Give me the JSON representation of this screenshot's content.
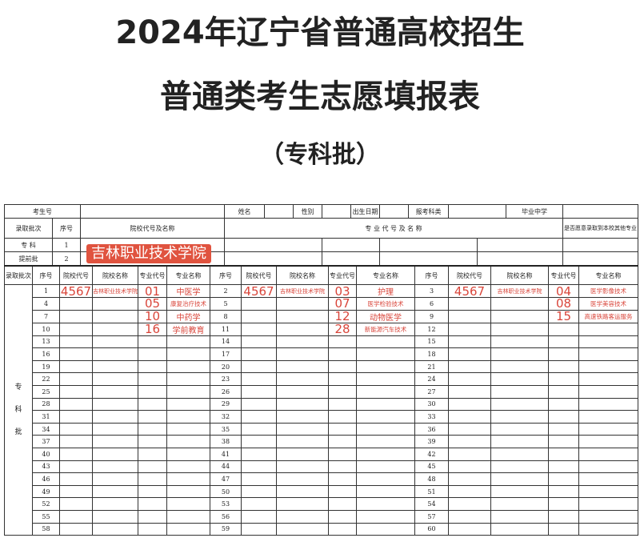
{
  "title_line1": "2024年辽宁省普通高校招生",
  "title_line2": "普通类考生志愿填报表",
  "title_line3": "（专科批）",
  "top": {
    "exam_no": "考生号",
    "name": "姓名",
    "gender": "性别",
    "birth": "出生日期",
    "subject": "报考科类",
    "school": "毕业中学",
    "batch": "录取批次",
    "seq": "序号",
    "college_code_name": "院校代号及名称",
    "major_code_name": "专 业 代 号 及 名 称",
    "accept_other": "是否愿意录取到本校其他专业",
    "row1_batch": "专 科",
    "row1_seq": "1",
    "row2_batch": "提前批",
    "row2_seq": "2",
    "banner": "吉林职业技术学院"
  },
  "headers": {
    "batch": "录取批次",
    "seq": "序号",
    "college_code": "院校代号",
    "college_name": "院校名称",
    "major_code": "专业代号",
    "major_name": "专业名称"
  },
  "batch_label": [
    "专",
    "科",
    "批"
  ],
  "rows": [
    [
      "1",
      "4567",
      "吉林职业技术学院",
      "01",
      "中医学",
      "2",
      "4567",
      "吉林职业技术学院",
      "03",
      "护理",
      "3",
      "4567",
      "吉林职业技术学院",
      "04",
      "医学影像技术"
    ],
    [
      "4",
      "",
      "",
      "05",
      "康复治疗技术",
      "5",
      "",
      "",
      "07",
      "医学检验技术",
      "6",
      "",
      "",
      "08",
      "医学美容技术"
    ],
    [
      "7",
      "",
      "",
      "10",
      "中药学",
      "8",
      "",
      "",
      "12",
      "动物医学",
      "9",
      "",
      "",
      "15",
      "高速铁路客运服务"
    ],
    [
      "10",
      "",
      "",
      "16",
      "学前教育",
      "11",
      "",
      "",
      "28",
      "新能源汽车技术",
      "12",
      "",
      "",
      "",
      ""
    ]
  ]
}
